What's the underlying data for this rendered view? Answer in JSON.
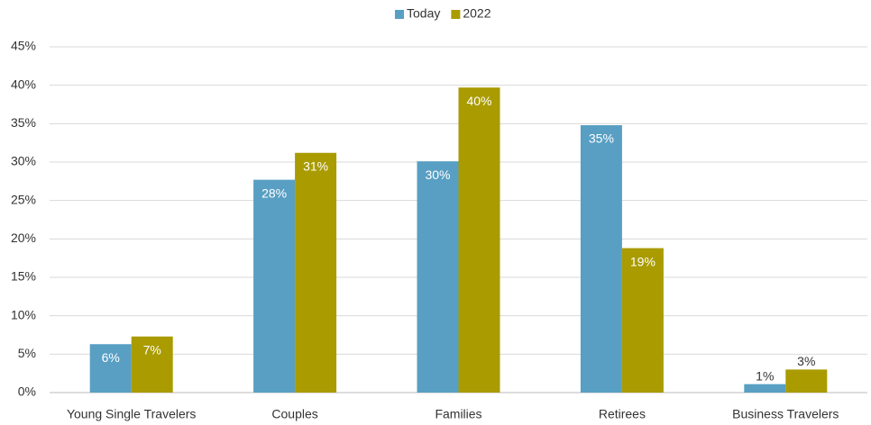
{
  "chart_data": {
    "type": "bar",
    "categories": [
      "Young Single Travelers",
      "Couples",
      "Families",
      "Retirees",
      "Business Travelers"
    ],
    "series": [
      {
        "name": "Today",
        "color": "#589fc3",
        "values": [
          6.3,
          27.7,
          30.1,
          34.8,
          1.1
        ],
        "value_labels": [
          "6%",
          "28%",
          "30%",
          "35%",
          "1%"
        ]
      },
      {
        "name": "2022",
        "color": "#a99b00",
        "values": [
          7.3,
          31.2,
          39.7,
          18.8,
          3.0
        ],
        "value_labels": [
          "7%",
          "31%",
          "40%",
          "19%",
          "3%"
        ]
      }
    ],
    "ylim": [
      0,
      45
    ],
    "yticks": [
      {
        "value": 0,
        "label": "0%"
      },
      {
        "value": 5,
        "label": "5%"
      },
      {
        "value": 10,
        "label": "10%"
      },
      {
        "value": 15,
        "label": "15%"
      },
      {
        "value": 20,
        "label": "20%"
      },
      {
        "value": 25,
        "label": "25%"
      },
      {
        "value": 30,
        "label": "30%"
      },
      {
        "value": 35,
        "label": "35%"
      },
      {
        "value": 40,
        "label": "40%"
      },
      {
        "value": 45,
        "label": "45%"
      }
    ],
    "grid": true,
    "legend": "top"
  }
}
